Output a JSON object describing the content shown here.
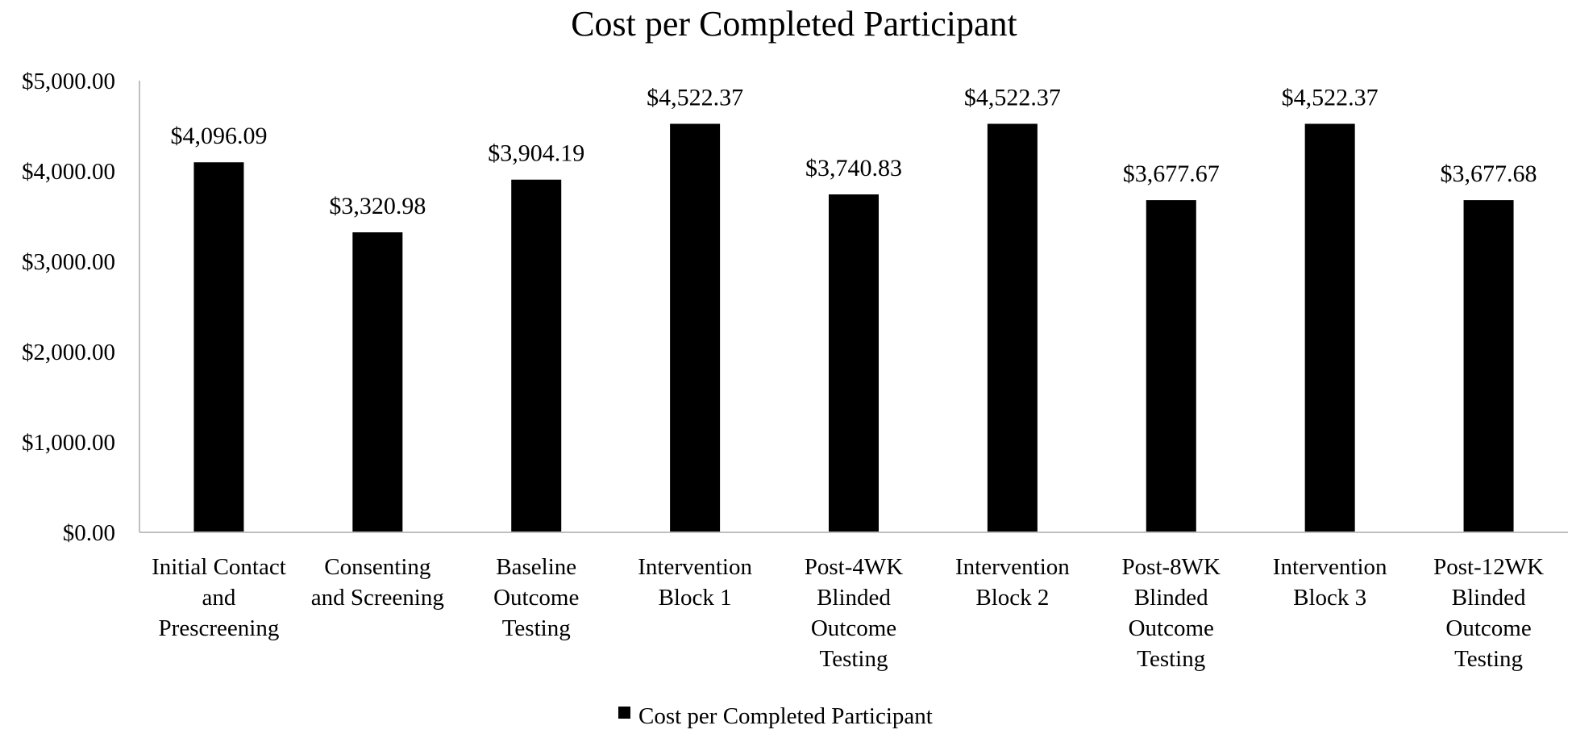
{
  "chart_data": {
    "type": "bar",
    "title": "Cost per Completed Participant",
    "categories": [
      [
        "Initial Contact",
        "and",
        "Prescreening"
      ],
      [
        "Consenting",
        "and Screening"
      ],
      [
        "Baseline",
        "Outcome",
        "Testing"
      ],
      [
        "Intervention",
        "Block 1"
      ],
      [
        "Post-4WK",
        "Blinded",
        "Outcome",
        "Testing"
      ],
      [
        "Intervention",
        "Block 2"
      ],
      [
        "Post-8WK",
        "Blinded",
        "Outcome",
        "Testing"
      ],
      [
        "Intervention",
        "Block 3"
      ],
      [
        "Post-12WK",
        "Blinded",
        "Outcome",
        "Testing"
      ]
    ],
    "series": [
      {
        "name": "Cost per Completed Participant",
        "color": "#000000",
        "values": [
          4096.09,
          3320.98,
          3904.19,
          4522.37,
          3740.83,
          4522.37,
          3677.67,
          4522.37,
          3677.68
        ]
      }
    ],
    "data_labels": [
      "$4,096.09",
      "$3,320.98",
      "$3,904.19",
      "$4,522.37",
      "$3,740.83",
      "$4,522.37",
      "$3,677.67",
      "$4,522.37",
      "$3,677.68"
    ],
    "yticks": [
      0,
      1000,
      2000,
      3000,
      4000,
      5000
    ],
    "ytick_labels": [
      "$0.00",
      "$1,000.00",
      "$2,000.00",
      "$3,000.00",
      "$4,000.00",
      "$5,000.00"
    ],
    "ylim": [
      0,
      5000
    ],
    "xlabel": "",
    "ylabel": "",
    "grid": false,
    "legend_position": "bottom",
    "axis_color": "#bfbfbf"
  }
}
